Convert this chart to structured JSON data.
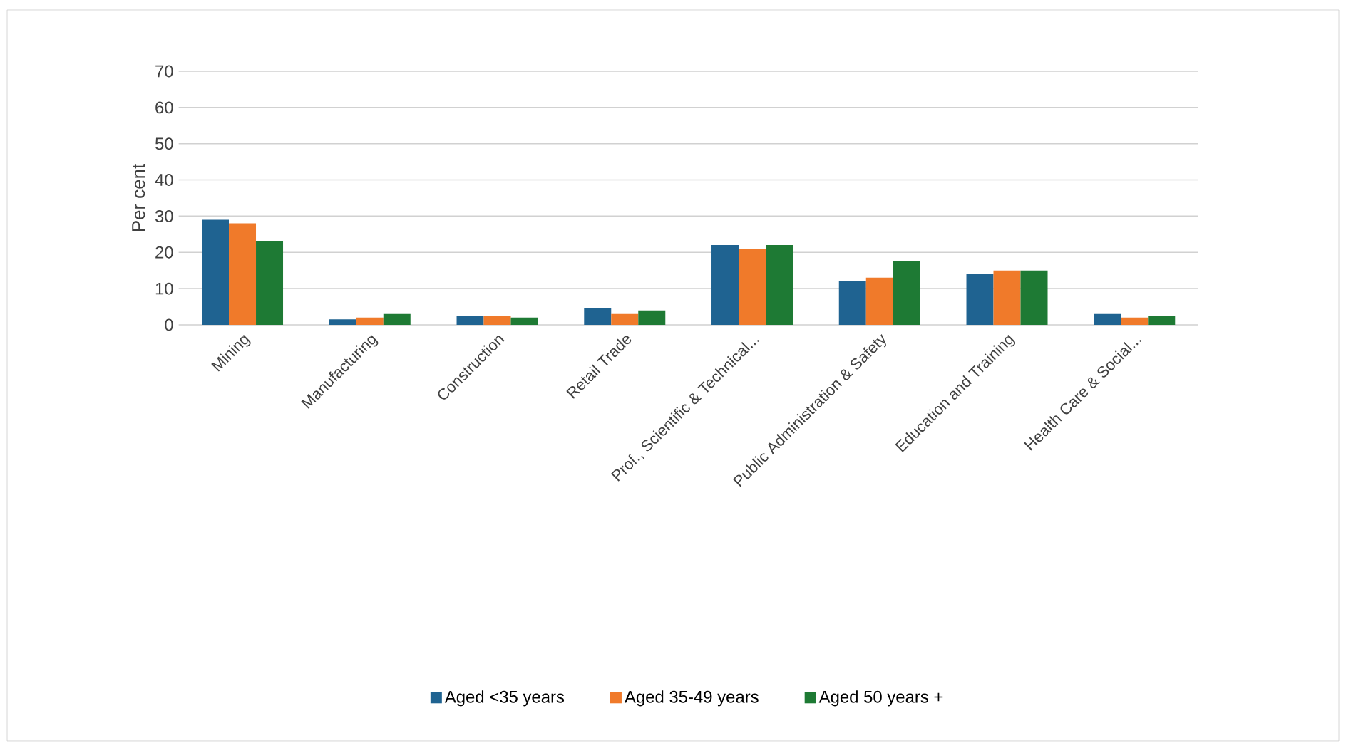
{
  "chart_data": {
    "type": "bar",
    "ylabel": "Per cent",
    "categories": [
      "Mining",
      "Manufacturing",
      "Construction",
      "Retail Trade",
      "Prof., Scientific & Technical...",
      "Public Administration & Safety",
      "Education and Training",
      "Health Care & Social..."
    ],
    "series": [
      {
        "name": "Aged <35 years",
        "color": "#1f6391",
        "values": [
          29,
          1.5,
          2.5,
          4.5,
          22,
          12,
          14,
          3
        ]
      },
      {
        "name": "Aged 35-49 years",
        "color": "#f07a2a",
        "values": [
          28,
          2,
          2.5,
          3,
          21,
          13,
          15,
          2
        ]
      },
      {
        "name": "Aged 50 years +",
        "color": "#1e7a34",
        "values": [
          23,
          3,
          2,
          4,
          22,
          17.5,
          15,
          2.5
        ]
      }
    ],
    "ylim": [
      0,
      70
    ],
    "yticks": [
      0,
      10,
      20,
      30,
      40,
      50,
      60,
      70
    ],
    "grid": "y",
    "legend": "bottom"
  }
}
